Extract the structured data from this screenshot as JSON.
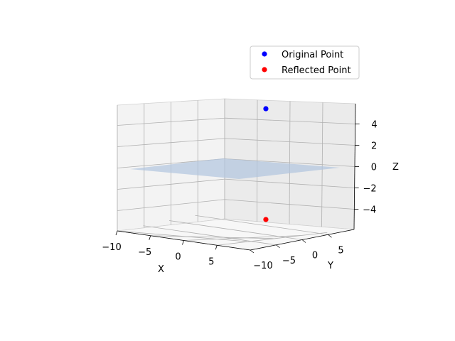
{
  "chart_data": {
    "type": "scatter",
    "projection": "3d",
    "title": "",
    "xlabel": "X",
    "ylabel": "Y",
    "zlabel": "Z",
    "xlim": [
      -10,
      10
    ],
    "ylim": [
      -10,
      10
    ],
    "zlim": [
      -5,
      5
    ],
    "x_ticks": [
      -10,
      -5,
      0,
      5
    ],
    "y_ticks": [
      -10,
      -5,
      0,
      5
    ],
    "z_ticks": [
      -4,
      -2,
      0,
      2,
      4
    ],
    "grid": true,
    "legend_position": "top-right",
    "series": [
      {
        "name": "Original Point",
        "color": "#0000ff",
        "points": [
          {
            "x": 5,
            "y": -10,
            "z": 5
          }
        ]
      },
      {
        "name": "Reflected Point",
        "color": "#ff0000",
        "points": [
          {
            "x": 5,
            "y": -10,
            "z": -5
          }
        ]
      }
    ],
    "surface": {
      "name": "plane z = 0",
      "z": 0,
      "color": "#b0c4de"
    }
  }
}
